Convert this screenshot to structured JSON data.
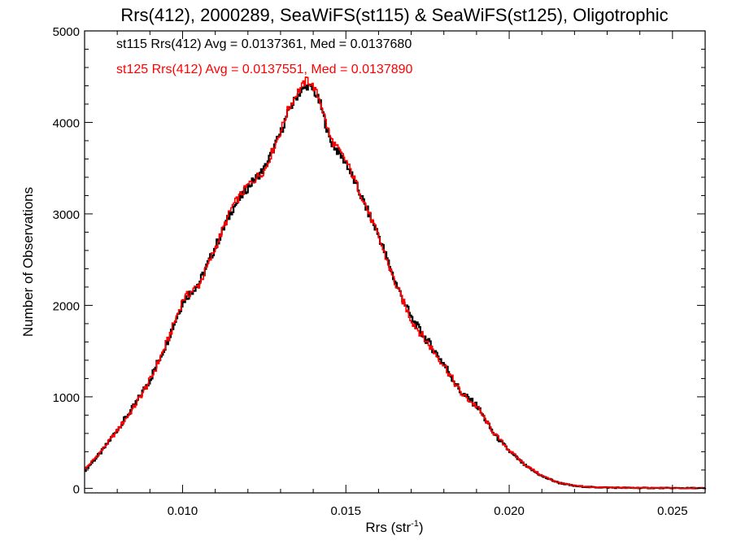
{
  "chart_data": {
    "type": "line",
    "style": "histogram-step",
    "title": "Rrs(412), 2000289, SeaWiFS(st115) & SeaWiFS(st125), Oligotrophic",
    "xlabel": "Rrs (str",
    "xlabel_sup": "-1",
    "xlabel_close": ")",
    "ylabel": "Number of Observations",
    "xlim": [
      0.007,
      0.026
    ],
    "ylim": [
      -50,
      5000
    ],
    "x_ticks": [
      0.01,
      0.015,
      0.02,
      0.025
    ],
    "x_tick_labels": [
      "0.010",
      "0.015",
      "0.020",
      "0.025"
    ],
    "y_ticks": [
      0,
      1000,
      2000,
      3000,
      4000,
      5000
    ],
    "y_tick_labels": [
      "0",
      "1000",
      "2000",
      "3000",
      "4000",
      "5000"
    ],
    "grid": false,
    "annotations": [
      {
        "text": "st115 Rrs(412) Avg = 0.0137361, Med = 0.0137680",
        "color": "#000000"
      },
      {
        "text": "st125 Rrs(412) Avg = 0.0137551, Med = 0.0137890",
        "color": "#ff0000"
      }
    ],
    "series": [
      {
        "color": "#000000",
        "x": [
          0.007,
          0.0075,
          0.008,
          0.0085,
          0.009,
          0.0095,
          0.01,
          0.0105,
          0.011,
          0.0115,
          0.012,
          0.0125,
          0.013,
          0.0132,
          0.0135,
          0.0138,
          0.014,
          0.0142,
          0.0145,
          0.015,
          0.0155,
          0.016,
          0.0165,
          0.017,
          0.0175,
          0.018,
          0.0185,
          0.019,
          0.0195,
          0.02,
          0.0205,
          0.021,
          0.0215,
          0.022,
          0.0225,
          0.023,
          0.024,
          0.025,
          0.026
        ],
        "y": [
          200,
          400,
          650,
          900,
          1200,
          1600,
          2050,
          2250,
          2650,
          3050,
          3300,
          3500,
          3900,
          4100,
          4300,
          4400,
          4350,
          4200,
          3800,
          3550,
          3150,
          2750,
          2250,
          1850,
          1600,
          1350,
          1050,
          900,
          600,
          400,
          240,
          130,
          60,
          25,
          12,
          8,
          4,
          2,
          1
        ]
      },
      {
        "color": "#ff0000",
        "x": [
          0.007,
          0.0075,
          0.008,
          0.0085,
          0.009,
          0.0095,
          0.01,
          0.0105,
          0.011,
          0.0115,
          0.012,
          0.0125,
          0.013,
          0.0132,
          0.0135,
          0.0138,
          0.014,
          0.0142,
          0.0145,
          0.015,
          0.0155,
          0.016,
          0.0165,
          0.017,
          0.0175,
          0.018,
          0.0185,
          0.019,
          0.0195,
          0.02,
          0.0205,
          0.021,
          0.0215,
          0.022,
          0.0225,
          0.023,
          0.024,
          0.025,
          0.026
        ],
        "y": [
          210,
          410,
          640,
          890,
          1190,
          1590,
          2070,
          2230,
          2640,
          3080,
          3320,
          3480,
          3920,
          4130,
          4330,
          4470,
          4380,
          4230,
          3830,
          3570,
          3170,
          2730,
          2230,
          1830,
          1580,
          1340,
          1040,
          890,
          610,
          410,
          250,
          135,
          62,
          26,
          13,
          8,
          4,
          2,
          1
        ]
      }
    ]
  }
}
